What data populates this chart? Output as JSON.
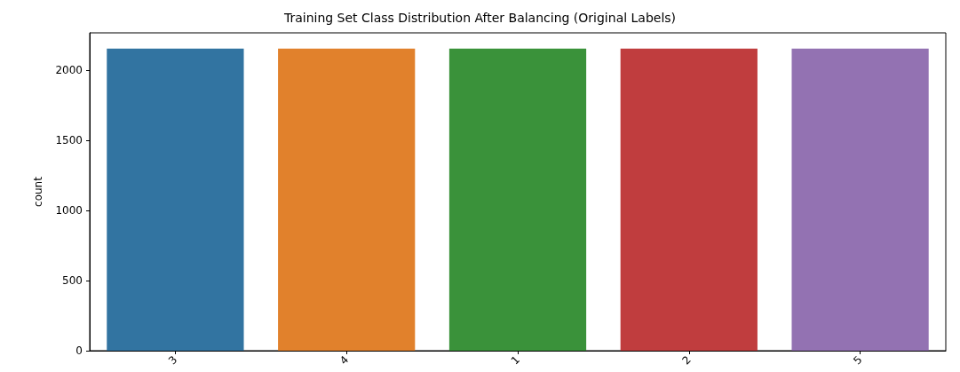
{
  "chart_data": {
    "type": "bar",
    "title": "Training Set Class Distribution After Balancing (Original Labels)",
    "ylabel": "count",
    "categories": [
      "3",
      "4",
      "1",
      "2",
      "5"
    ],
    "values": [
      2155,
      2155,
      2155,
      2155,
      2155
    ],
    "colors": [
      "#3274a1",
      "#e1812c",
      "#3a923a",
      "#c03d3e",
      "#9372b2"
    ],
    "ylim": [
      0,
      2268
    ],
    "yticks": [
      0,
      500,
      1000,
      1500,
      2000
    ],
    "grid": false
  }
}
